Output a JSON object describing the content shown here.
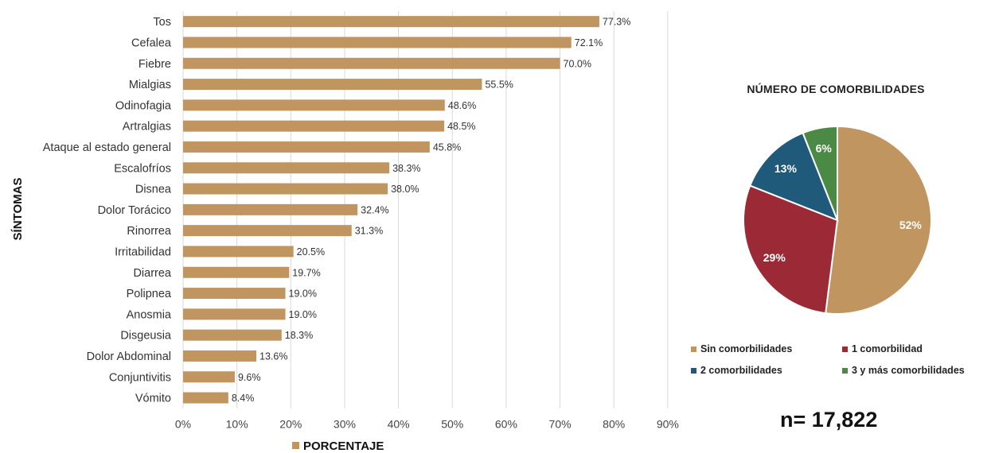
{
  "chart_data": [
    {
      "type": "bar",
      "orientation": "horizontal",
      "ylabel": "SÍNTOMAS",
      "legend": "PORCENTAJE",
      "legend_position": "bottom",
      "color": "#C09560",
      "grid": true,
      "xlim": [
        0,
        90
      ],
      "xticks": [
        "0%",
        "10%",
        "20%",
        "30%",
        "40%",
        "50%",
        "60%",
        "70%",
        "80%",
        "90%"
      ],
      "categories": [
        "Tos",
        "Cefalea",
        "Fiebre",
        "Mialgias",
        "Odinofagia",
        "Artralgias",
        "Ataque al estado general",
        "Escalofríos",
        "Disnea",
        "Dolor Torácico",
        "Rinorrea",
        "Irritabilidad",
        "Diarrea",
        "Polipnea",
        "Anosmia",
        "Disgeusia",
        "Dolor Abdominal",
        "Conjuntivitis",
        "Vómito"
      ],
      "values": [
        77.3,
        72.1,
        70.0,
        55.5,
        48.6,
        48.5,
        45.8,
        38.3,
        38.0,
        32.4,
        31.3,
        20.5,
        19.7,
        19.0,
        19.0,
        18.3,
        13.6,
        9.6,
        8.4
      ],
      "data_labels": [
        "77.3%",
        "72.1%",
        "70.0%",
        "55.5%",
        "48.6%",
        "48.5%",
        "45.8%",
        "38.3%",
        "38.0%",
        "32.4%",
        "31.3%",
        "20.5%",
        "19.7%",
        "19.0%",
        "19.0%",
        "18.3%",
        "13.6%",
        "9.6%",
        "8.4%"
      ]
    },
    {
      "type": "pie",
      "title": "NÚMERO DE COMORBILIDADES",
      "labels": [
        "Sin comorbilidades",
        "1 comorbilidad",
        "2 comorbilidades",
        "3 y más comorbilidades"
      ],
      "values": [
        52,
        29,
        13,
        6
      ],
      "data_labels": [
        "52%",
        "29%",
        "13%",
        "6%"
      ],
      "colors": [
        "#C09560",
        "#9B2A36",
        "#1F5A7A",
        "#4A8A45"
      ],
      "legend_position": "bottom"
    }
  ],
  "footer": {
    "n_text": "n= 17,822"
  }
}
